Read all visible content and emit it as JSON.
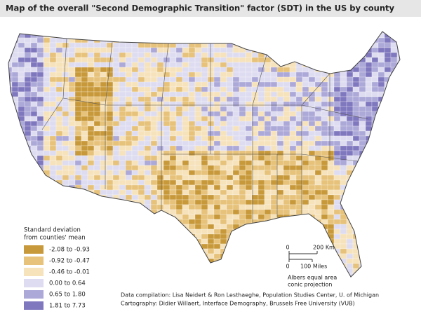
{
  "title": "Map of the overall \"Second Demographic Transition\" factor (SDT) in the US by county",
  "legend": {
    "title": [
      "Standard deviation",
      "from counties' mean"
    ],
    "items": [
      {
        "label": "-2.08 to -0.93",
        "color": "#c8993a"
      },
      {
        "label": "-0.92 to -0.47",
        "color": "#e6c27a"
      },
      {
        "label": "-0.46 to -0.01",
        "color": "#f6e2bb"
      },
      {
        "label": "0.00 to 0.64",
        "color": "#dedcf0"
      },
      {
        "label": "0.65 to 1.80",
        "color": "#aca8d8"
      },
      {
        "label": "1.81 to 7.73",
        "color": "#8078bf"
      }
    ]
  },
  "scale": {
    "km_zero": "0",
    "km": "200 Km",
    "mi_zero": "0",
    "mi": "100 Miles"
  },
  "projection": [
    "Albers equal area",
    "conic projection"
  ],
  "credits": [
    "Data compilation: Lisa Neidert & Ron Lesthaeghe, Population Studies Center, U. of Michigan",
    "Cartography: Didier Willaert, Interface Demography, Brussels Free University (VUB)"
  ]
}
